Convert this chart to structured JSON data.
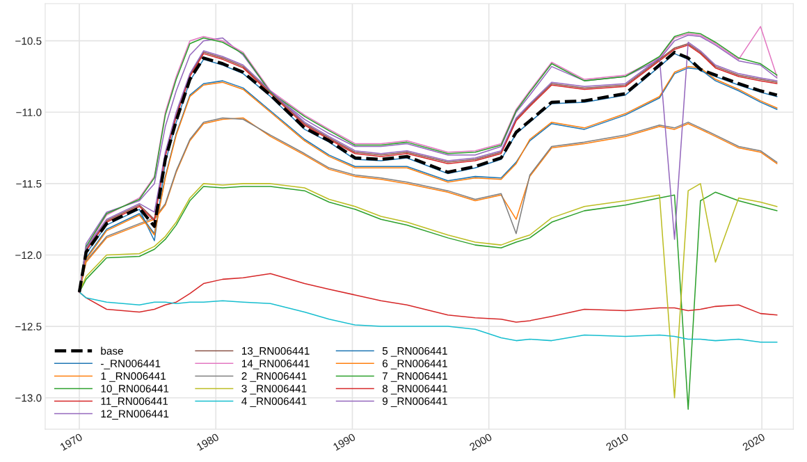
{
  "chart_data": {
    "type": "line",
    "x": [
      1970.0,
      1970.5,
      1972.0,
      1974.4,
      1975.5,
      1976.3,
      1977.1,
      1978.1,
      1979.1,
      1980.5,
      1982.0,
      1984.0,
      1986.5,
      1988.3,
      1990.2,
      1992.1,
      1994.0,
      1997.0,
      1999.0,
      2000.9,
      2002.0,
      2003.0,
      2004.6,
      2007.0,
      2010.0,
      2012.5,
      2013.6,
      2014.6,
      2015.5,
      2016.6,
      2018.3,
      2019.9,
      2021.1
    ],
    "series": [
      {
        "name": "base",
        "color": "#000000",
        "line_style": "dashed",
        "values": [
          -12.26,
          -11.98,
          -11.78,
          -11.67,
          -11.8,
          -11.33,
          -11.06,
          -10.77,
          -10.62,
          -10.66,
          -10.72,
          -10.88,
          -11.11,
          -11.2,
          -11.32,
          -11.33,
          -11.31,
          -11.42,
          -11.38,
          -11.32,
          -11.14,
          -11.06,
          -10.93,
          -10.92,
          -10.87,
          -10.67,
          -10.58,
          -10.62,
          -10.7,
          -10.74,
          -10.8,
          -10.85,
          -10.88
        ]
      },
      {
        "name": "-_RN006441",
        "color": "#1f77b4",
        "values": [
          -12.26,
          -11.99,
          -11.79,
          -11.68,
          -11.9,
          -11.35,
          -11.07,
          -10.78,
          -10.63,
          -10.67,
          -10.73,
          -10.89,
          -11.12,
          -11.21,
          -11.33,
          -11.34,
          -11.32,
          -11.43,
          -11.39,
          -11.33,
          -11.15,
          -11.07,
          -10.94,
          -10.93,
          -10.88,
          -10.68,
          -10.59,
          -10.63,
          -10.71,
          -10.75,
          -10.81,
          -10.86,
          -10.89
        ]
      },
      {
        "name": "1 _RN006441",
        "color": "#ff7f0e",
        "values": [
          -12.26,
          -12.05,
          -11.88,
          -11.79,
          -11.75,
          -11.65,
          -11.42,
          -11.2,
          -11.08,
          -11.05,
          -11.04,
          -11.17,
          -11.3,
          -11.4,
          -11.45,
          -11.47,
          -11.5,
          -11.56,
          -11.62,
          -11.58,
          -11.75,
          -11.45,
          -11.25,
          -11.22,
          -11.17,
          -11.1,
          -11.12,
          -11.08,
          -11.12,
          -11.17,
          -11.25,
          -11.28,
          -11.36
        ]
      },
      {
        "name": "10_RN006441",
        "color": "#2ca02c",
        "values": [
          -12.26,
          -12.17,
          -12.02,
          -12.01,
          -11.96,
          -11.89,
          -11.79,
          -11.62,
          -11.52,
          -11.53,
          -11.52,
          -11.52,
          -11.55,
          -11.63,
          -11.68,
          -11.75,
          -11.79,
          -11.88,
          -11.93,
          -11.95,
          -11.91,
          -11.88,
          -11.77,
          -11.69,
          -11.65,
          -11.6,
          -11.58,
          -13.08,
          -11.62,
          -11.56,
          -11.62,
          -11.66,
          -11.69
        ]
      },
      {
        "name": "11_RN006441",
        "color": "#d62728",
        "values": [
          -12.26,
          -12.3,
          -12.38,
          -12.4,
          -12.38,
          -12.35,
          -12.33,
          -12.27,
          -12.2,
          -12.17,
          -12.16,
          -12.13,
          -12.2,
          -12.24,
          -12.28,
          -12.32,
          -12.35,
          -12.42,
          -12.44,
          -12.45,
          -12.47,
          -12.46,
          -12.43,
          -12.38,
          -12.39,
          -12.37,
          -12.37,
          -12.39,
          -12.38,
          -12.36,
          -12.35,
          -12.41,
          -12.42
        ]
      },
      {
        "name": "12_RN006441",
        "color": "#9467bd",
        "values": [
          -12.26,
          -11.92,
          -11.7,
          -11.62,
          -11.5,
          -11.1,
          -10.85,
          -10.6,
          -10.5,
          -10.48,
          -10.6,
          -10.86,
          -11.05,
          -11.15,
          -11.24,
          -11.24,
          -11.22,
          -11.3,
          -11.3,
          -11.24,
          -11.0,
          -10.88,
          -10.68,
          -10.78,
          -10.75,
          -10.63,
          -10.5,
          -10.46,
          -10.47,
          -10.53,
          -10.64,
          -10.67,
          -10.76
        ]
      },
      {
        "name": "13_RN006441",
        "color": "#8c564b",
        "values": [
          -12.26,
          -11.96,
          -11.76,
          -11.65,
          -11.75,
          -11.3,
          -11.02,
          -10.74,
          -10.58,
          -10.62,
          -10.68,
          -10.86,
          -11.08,
          -11.18,
          -11.28,
          -11.3,
          -11.28,
          -11.35,
          -11.33,
          -11.28,
          -11.05,
          -10.95,
          -10.8,
          -10.83,
          -10.81,
          -10.63,
          -10.55,
          -10.52,
          -10.58,
          -10.68,
          -10.74,
          -10.77,
          -10.79
        ]
      },
      {
        "name": "14_RN006441",
        "color": "#e377c2",
        "values": [
          -12.26,
          -11.95,
          -11.72,
          -11.6,
          -11.45,
          -11.0,
          -10.75,
          -10.5,
          -10.47,
          -10.5,
          -10.58,
          -10.85,
          -11.02,
          -11.12,
          -11.22,
          -11.22,
          -11.2,
          -11.28,
          -11.27,
          -11.22,
          -10.98,
          -10.85,
          -10.65,
          -10.77,
          -10.74,
          -10.62,
          -10.48,
          -10.45,
          -10.46,
          -10.52,
          -10.63,
          -10.4,
          -10.75
        ]
      },
      {
        "name": "2 _RN006441",
        "color": "#7f7f7f",
        "values": [
          -12.26,
          -12.04,
          -11.87,
          -11.78,
          -11.74,
          -11.64,
          -11.41,
          -11.19,
          -11.07,
          -11.04,
          -11.05,
          -11.16,
          -11.29,
          -11.39,
          -11.44,
          -11.46,
          -11.49,
          -11.55,
          -11.61,
          -11.57,
          -11.85,
          -11.44,
          -11.24,
          -11.21,
          -11.16,
          -11.09,
          -11.11,
          -11.07,
          -11.11,
          -11.16,
          -11.24,
          -11.27,
          -11.35
        ]
      },
      {
        "name": "3 _RN006441",
        "color": "#bcbd22",
        "values": [
          -12.26,
          -12.15,
          -12.0,
          -11.99,
          -11.94,
          -11.87,
          -11.77,
          -11.6,
          -11.5,
          -11.51,
          -11.5,
          -11.5,
          -11.53,
          -11.61,
          -11.66,
          -11.73,
          -11.77,
          -11.86,
          -11.91,
          -11.93,
          -11.89,
          -11.86,
          -11.74,
          -11.66,
          -11.62,
          -11.58,
          -13.0,
          -11.55,
          -11.5,
          -12.05,
          -11.6,
          -11.63,
          -11.66
        ]
      },
      {
        "name": "4 _RN006441",
        "color": "#17becf",
        "values": [
          -12.26,
          -12.3,
          -12.33,
          -12.35,
          -12.33,
          -12.33,
          -12.34,
          -12.33,
          -12.33,
          -12.32,
          -12.33,
          -12.34,
          -12.4,
          -12.45,
          -12.49,
          -12.5,
          -12.5,
          -12.5,
          -12.52,
          -12.58,
          -12.6,
          -12.59,
          -12.6,
          -12.56,
          -12.57,
          -12.56,
          -12.57,
          -12.59,
          -12.59,
          -12.6,
          -12.59,
          -12.61,
          -12.61
        ]
      },
      {
        "name": "5 _RN006441",
        "color": "#1f77b4",
        "values": [
          -12.26,
          -12.02,
          -11.82,
          -11.71,
          -11.85,
          -11.45,
          -11.15,
          -10.88,
          -10.8,
          -10.78,
          -10.83,
          -10.99,
          -11.19,
          -11.3,
          -11.38,
          -11.38,
          -11.38,
          -11.48,
          -11.45,
          -11.46,
          -11.35,
          -11.2,
          -11.08,
          -11.12,
          -11.02,
          -10.9,
          -10.73,
          -10.69,
          -10.7,
          -10.78,
          -10.85,
          -10.93,
          -10.98
        ]
      },
      {
        "name": "6 _RN006441",
        "color": "#ff7f0e",
        "values": [
          -12.26,
          -12.03,
          -11.83,
          -11.72,
          -11.86,
          -11.46,
          -11.16,
          -10.89,
          -10.81,
          -10.79,
          -10.84,
          -11.0,
          -11.2,
          -11.31,
          -11.39,
          -11.39,
          -11.39,
          -11.49,
          -11.46,
          -11.47,
          -11.36,
          -11.19,
          -11.07,
          -11.11,
          -11.01,
          -10.89,
          -10.72,
          -10.68,
          -10.69,
          -10.77,
          -10.84,
          -10.92,
          -10.97
        ]
      },
      {
        "name": "7 _RN006441",
        "color": "#2ca02c",
        "values": [
          -12.26,
          -11.94,
          -11.71,
          -11.61,
          -11.46,
          -11.02,
          -10.77,
          -10.52,
          -10.48,
          -10.51,
          -10.59,
          -10.86,
          -11.03,
          -11.13,
          -11.23,
          -11.23,
          -11.21,
          -11.29,
          -11.28,
          -11.23,
          -10.99,
          -10.86,
          -10.66,
          -10.78,
          -10.75,
          -10.61,
          -10.47,
          -10.44,
          -10.45,
          -10.51,
          -10.62,
          -10.66,
          -10.74
        ]
      },
      {
        "name": "8 _RN006441",
        "color": "#d62728",
        "values": [
          -12.26,
          -11.97,
          -11.77,
          -11.66,
          -11.76,
          -11.31,
          -11.03,
          -10.75,
          -10.59,
          -10.63,
          -10.69,
          -10.87,
          -11.09,
          -11.19,
          -11.29,
          -11.31,
          -11.29,
          -11.36,
          -11.34,
          -11.29,
          -11.06,
          -10.96,
          -10.81,
          -10.84,
          -10.82,
          -10.64,
          -10.56,
          -10.53,
          -10.59,
          -10.69,
          -10.75,
          -10.78,
          -10.8
        ]
      },
      {
        "name": "9 _RN006441",
        "color": "#9467bd",
        "values": [
          -12.26,
          -11.95,
          -11.75,
          -11.64,
          -11.7,
          -11.28,
          -11.0,
          -10.73,
          -10.57,
          -10.61,
          -10.67,
          -10.85,
          -11.07,
          -11.17,
          -11.27,
          -11.29,
          -11.27,
          -11.34,
          -11.32,
          -11.27,
          -11.04,
          -10.94,
          -10.79,
          -10.82,
          -10.8,
          -10.62,
          -11.89,
          -10.51,
          -10.57,
          -10.67,
          -10.73,
          -10.76,
          -10.78
        ]
      }
    ],
    "xlim": [
      1967.5,
      2022.3
    ],
    "ylim": [
      -13.22,
      -10.24
    ],
    "xticks": [
      1970,
      1980,
      1990,
      2000,
      2010,
      2020
    ],
    "yticks": [
      {
        "value": -13.0,
        "label": "−13.0"
      },
      {
        "value": -12.5,
        "label": "−12.5"
      },
      {
        "value": -12.0,
        "label": "−12.0"
      },
      {
        "value": -11.5,
        "label": "−11.5"
      },
      {
        "value": -11.0,
        "label": "−11.0"
      },
      {
        "value": -10.5,
        "label": "−10.5"
      }
    ],
    "grid": true,
    "legend": "bottom left",
    "marker": "none"
  }
}
